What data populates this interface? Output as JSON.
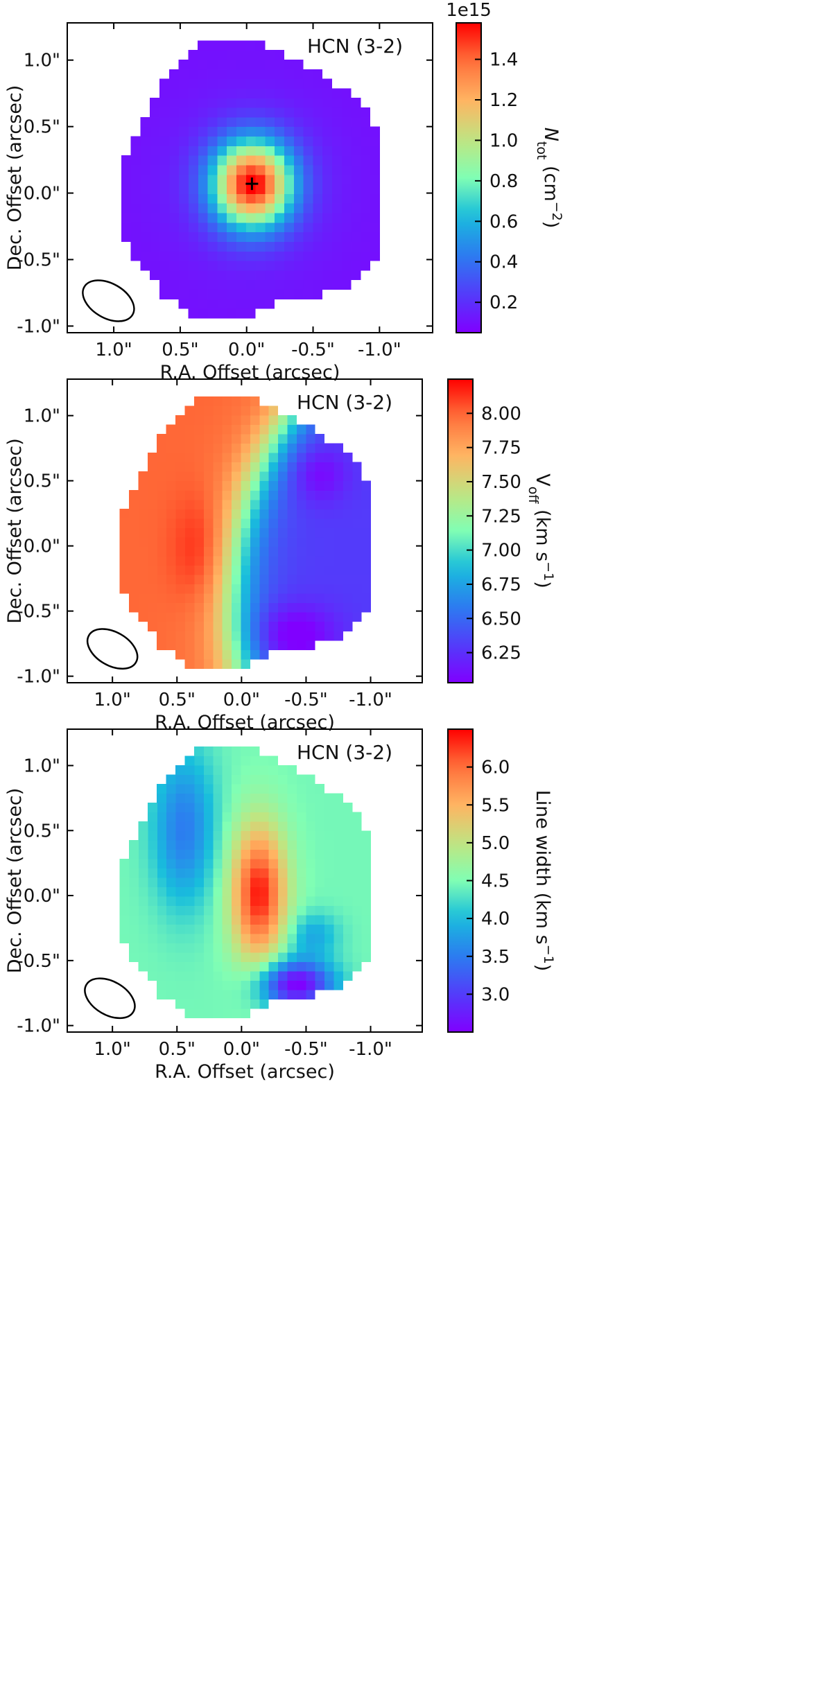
{
  "chart_data": [
    {
      "type": "heatmap",
      "label": "HCN (3-2)",
      "xlabel": "R.A. Offset (arcsec)",
      "ylabel": "Dec. Offset (arcsec)",
      "x_ticks": [
        {
          "value": 1.0,
          "label": "1.0\""
        },
        {
          "value": 0.5,
          "label": "0.5\""
        },
        {
          "value": 0.0,
          "label": "0.0\""
        },
        {
          "value": -0.5,
          "label": "-0.5\""
        },
        {
          "value": -1.0,
          "label": "-1.0\""
        }
      ],
      "y_ticks": [
        {
          "value": 1.0,
          "label": "1.0\""
        },
        {
          "value": 0.5,
          "label": "0.5\""
        },
        {
          "value": 0.0,
          "label": "0.0\""
        },
        {
          "value": -0.5,
          "label": "-0.5\""
        },
        {
          "value": -1.0,
          "label": "-1.0\""
        }
      ],
      "xlim": [
        1.35,
        -1.4
      ],
      "ylim": [
        -1.05,
        1.28
      ],
      "colorbar": {
        "label_parts": [
          {
            "t": "N"
          },
          {
            "t": "tot",
            "sub": true
          },
          {
            "t": " (cm"
          },
          {
            "t": "−2",
            "sup": true
          },
          {
            "t": ")"
          }
        ],
        "range": [
          0.05,
          1.58
        ],
        "ticks": [
          0.2,
          0.4,
          0.6,
          0.8,
          1.0,
          1.2,
          1.4
        ],
        "tick_labels": [
          "0.2",
          "0.4",
          "0.6",
          "0.8",
          "1.0",
          "1.2",
          "1.4"
        ],
        "multiplier": "1e15"
      },
      "model": "column_density",
      "peak_value": 1.55,
      "peak_marker": {
        "x": -0.04,
        "y": 0.07
      },
      "beam": {
        "x": 1.04,
        "y": -0.81,
        "major_arcsec": 0.42,
        "minor_arcsec": 0.26,
        "pa_deg": 30
      }
    },
    {
      "type": "heatmap",
      "label": "HCN (3-2)",
      "xlabel": "R.A. Offset (arcsec)",
      "ylabel": "Dec. Offset (arcsec)",
      "x_ticks": [
        {
          "value": 1.0,
          "label": "1.0\""
        },
        {
          "value": 0.5,
          "label": "0.5\""
        },
        {
          "value": 0.0,
          "label": "0.0\""
        },
        {
          "value": -0.5,
          "label": "-0.5\""
        },
        {
          "value": -1.0,
          "label": "-1.0\""
        }
      ],
      "y_ticks": [
        {
          "value": 1.0,
          "label": "1.0\""
        },
        {
          "value": 0.5,
          "label": "0.5\""
        },
        {
          "value": 0.0,
          "label": "0.0\""
        },
        {
          "value": -0.5,
          "label": "-0.5\""
        },
        {
          "value": -1.0,
          "label": "-1.0\""
        }
      ],
      "xlim": [
        1.35,
        -1.4
      ],
      "ylim": [
        -1.05,
        1.28
      ],
      "colorbar": {
        "label_parts": [
          {
            "t": "V"
          },
          {
            "t": "off",
            "sub": true
          },
          {
            "t": " (km s"
          },
          {
            "t": "−1",
            "sup": true
          },
          {
            "t": ")"
          }
        ],
        "range": [
          6.03,
          8.25
        ],
        "ticks": [
          6.25,
          6.5,
          6.75,
          7.0,
          7.25,
          7.5,
          7.75,
          8.0
        ],
        "tick_labels": [
          "6.25",
          "6.50",
          "6.75",
          "7.00",
          "7.25",
          "7.50",
          "7.75",
          "8.00"
        ],
        "multiplier": ""
      },
      "model": "velocity",
      "beam": {
        "x": 1.0,
        "y": -0.79,
        "major_arcsec": 0.42,
        "minor_arcsec": 0.26,
        "pa_deg": 30
      }
    },
    {
      "type": "heatmap",
      "label": "HCN (3-2)",
      "xlabel": "R.A. Offset (arcsec)",
      "ylabel": "Dec. Offset (arcsec)",
      "x_ticks": [
        {
          "value": 1.0,
          "label": "1.0\""
        },
        {
          "value": 0.5,
          "label": "0.5\""
        },
        {
          "value": 0.0,
          "label": "0.0\""
        },
        {
          "value": -0.5,
          "label": "-0.5\""
        },
        {
          "value": -1.0,
          "label": "-1.0\""
        }
      ],
      "y_ticks": [
        {
          "value": 1.0,
          "label": "1.0\""
        },
        {
          "value": 0.5,
          "label": "0.5\""
        },
        {
          "value": 0.0,
          "label": "0.0\""
        },
        {
          "value": -0.5,
          "label": "-0.5\""
        },
        {
          "value": -1.0,
          "label": "-1.0\""
        }
      ],
      "xlim": [
        1.35,
        -1.4
      ],
      "ylim": [
        -1.05,
        1.28
      ],
      "colorbar": {
        "label_parts": [
          {
            "t": "Line width (km s"
          },
          {
            "t": "−1",
            "sup": true
          },
          {
            "t": ")"
          }
        ],
        "range": [
          2.5,
          6.5
        ],
        "ticks": [
          3.0,
          3.5,
          4.0,
          4.5,
          5.0,
          5.5,
          6.0
        ],
        "tick_labels": [
          "3.0",
          "3.5",
          "4.0",
          "4.5",
          "5.0",
          "5.5",
          "6.0"
        ],
        "multiplier": ""
      },
      "model": "line_width",
      "beam": {
        "x": 1.02,
        "y": -0.79,
        "major_arcsec": 0.42,
        "minor_arcsec": 0.26,
        "pa_deg": 30
      }
    }
  ]
}
